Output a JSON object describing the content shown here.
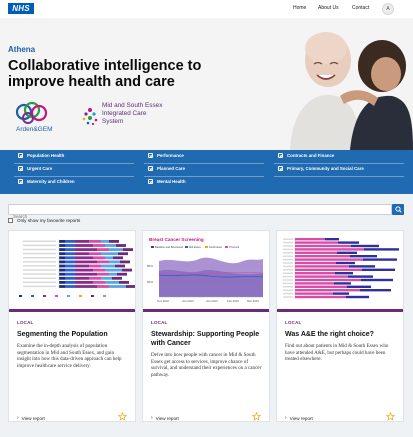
{
  "header": {
    "logo_text": "NHS",
    "nav": [
      "Home",
      "About Us",
      "Contact"
    ],
    "avatar_initial": "A"
  },
  "hero": {
    "brand": "Athena",
    "headline": "Collaborative intelligence to improve health and care",
    "partners": {
      "arden_gem": "Arden&GEM",
      "mse_line1": "Mid and South Essex",
      "mse_line2": "Integrated Care",
      "mse_line3": "System"
    }
  },
  "categories": [
    [
      "Population Health",
      "Performance",
      "Contracts and Finance"
    ],
    [
      "Urgent Care",
      "Planned Care",
      "Primary, Community and Social Care"
    ],
    [
      "Maternity and Children",
      "Mental Health",
      ""
    ]
  ],
  "search": {
    "placeholder": "Search",
    "value": ""
  },
  "favourites_toggle": {
    "label": "Only show my favourite reports",
    "checked": false
  },
  "cards": [
    {
      "tag": "LOCAL",
      "title": "Segmenting the Population",
      "description": "Examine the in-depth analysis of population segmentation in Mid and South Essex, and gain insight into how this data-driven approach can help improve healthcare service delivery.",
      "view_label": "View report"
    },
    {
      "tag": "LOCAL",
      "title": "Stewardship: Supporting People with Cancer",
      "description": "Delve into how people with cancer in Mid & South Essex get access to services, improve chance of survival, and understand their experiences on a cancer pathway.",
      "view_label": "View report"
    },
    {
      "tag": "LOCAL",
      "title": "Was A&E the right choice?",
      "description": "Find out about patients in Mid & South Essex who have attended A&E, but perhaps could have been treated elsewhere.",
      "view_label": "View report"
    }
  ],
  "thumbnails": {
    "cancer_title": "Breast Cancer Screening",
    "cancer_legend": [
      "Basildon and Brentwood",
      "Mid Essex",
      "South East",
      "Thurrock"
    ],
    "cancer_y_ticks": [
      "80%",
      "60%"
    ],
    "cancer_x_ticks": [
      "Nov 2022",
      "Jan 2023",
      "Jan 2023",
      "Feb 2023",
      "Mar 2023"
    ]
  },
  "colors": {
    "nhs_blue": "#005eb8",
    "category_band": "#1f6ab0",
    "local_accent": "#6c2a7a",
    "star": "#f2a516"
  }
}
